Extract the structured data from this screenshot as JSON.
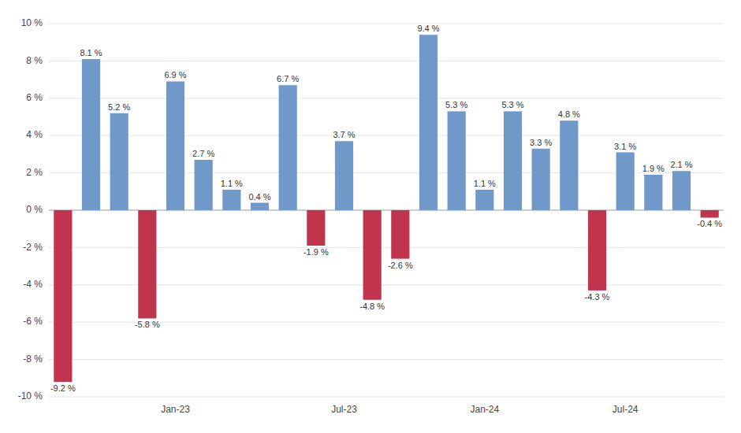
{
  "chart_data": {
    "type": "bar",
    "categories": [
      null,
      null,
      null,
      null,
      "Jan-23",
      null,
      null,
      null,
      null,
      null,
      "Jul-23",
      null,
      null,
      null,
      null,
      "Jan-24",
      null,
      null,
      null,
      null,
      "Jul-24",
      null,
      null,
      null
    ],
    "values": [
      -9.2,
      8.1,
      5.2,
      -5.8,
      6.9,
      2.7,
      1.1,
      0.4,
      6.7,
      -1.9,
      3.7,
      -4.8,
      -2.6,
      9.4,
      5.3,
      1.1,
      5.3,
      3.3,
      4.8,
      -4.3,
      3.1,
      1.9,
      2.1,
      -0.4
    ],
    "value_labels": [
      "-9.2 %",
      "8.1 %",
      "5.2 %",
      "-5.8 %",
      "6.9 %",
      "2.7 %",
      "1.1 %",
      "0.4 %",
      "6.7 %",
      "-1.9 %",
      "3.7 %",
      "-4.8 %",
      "-2.6 %",
      "9.4 %",
      "5.3 %",
      "1.1 %",
      "5.3 %",
      "3.3 %",
      "4.8 %",
      "-4.3 %",
      "3.1 %",
      "1.9 %",
      "2.1 %",
      "-0.4 %"
    ],
    "colors": [
      "#c0344d",
      "#7098c8",
      "#7098c8",
      "#c0344d",
      "#7098c8",
      "#7098c8",
      "#7098c8",
      "#7098c8",
      "#7098c8",
      "#c0344d",
      "#7098c8",
      "#c0344d",
      "#c0344d",
      "#7098c8",
      "#7098c8",
      "#7098c8",
      "#7098c8",
      "#7098c8",
      "#7098c8",
      "#c0344d",
      "#7098c8",
      "#7098c8",
      "#7098c8",
      "#c0344d"
    ],
    "ylim": [
      -10,
      10
    ],
    "yticks": [
      {
        "value": -10,
        "label": "-10 %"
      },
      {
        "value": -8,
        "label": "-8 %"
      },
      {
        "value": -6,
        "label": "-6 %"
      },
      {
        "value": -4,
        "label": "-4 %"
      },
      {
        "value": -2,
        "label": "-2 %"
      },
      {
        "value": 0,
        "label": "0 %"
      },
      {
        "value": 2,
        "label": "2 %"
      },
      {
        "value": 4,
        "label": "4 %"
      },
      {
        "value": 6,
        "label": "6 %"
      },
      {
        "value": 8,
        "label": "8 %"
      },
      {
        "value": 10,
        "label": "10 %"
      }
    ],
    "grid": true,
    "data_labels": true
  }
}
